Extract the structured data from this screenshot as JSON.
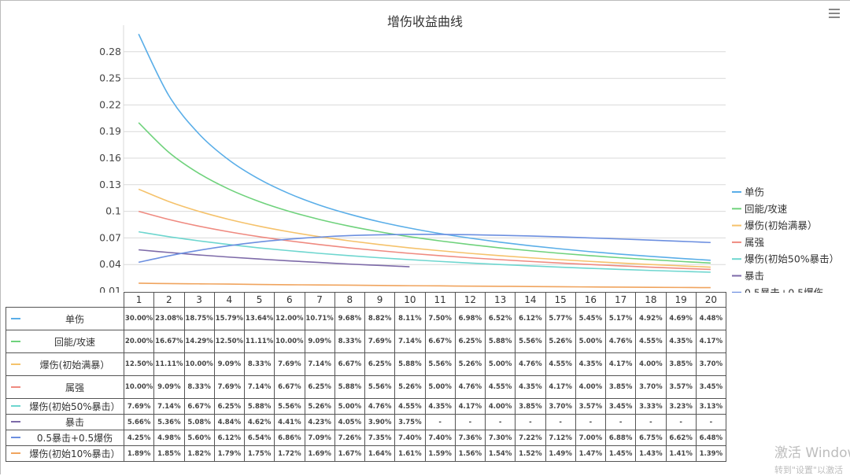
{
  "window": {
    "menu_icon": "hamburger-menu-icon"
  },
  "watermark": {
    "line1": "激活 Windows",
    "line2": "转到\"设置\"以激活"
  },
  "chart_data": {
    "type": "line",
    "title": "增伤收益曲线",
    "xlabel": "",
    "ylabel": "",
    "ylim": [
      0.01,
      0.31
    ],
    "yticks": [
      "0.01",
      "0.04",
      "0.07",
      "0.1",
      "0.13",
      "0.16",
      "0.19",
      "0.22",
      "0.25",
      "0.28"
    ],
    "grid": true,
    "legend_position": "right",
    "x": [
      1,
      2,
      3,
      4,
      5,
      6,
      7,
      8,
      9,
      10,
      11,
      12,
      13,
      14,
      15,
      16,
      17,
      18,
      19,
      20
    ],
    "series": [
      {
        "name": "单伤",
        "color": "#5aaee8",
        "values": [
          0.3,
          0.2308,
          0.1875,
          0.1579,
          0.1364,
          0.12,
          0.1071,
          0.0968,
          0.0882,
          0.0811,
          0.075,
          0.0698,
          0.0652,
          0.0612,
          0.0577,
          0.0545,
          0.0517,
          0.0492,
          0.0469,
          0.0448
        ],
        "labels": [
          "30.00%",
          "23.08%",
          "18.75%",
          "15.79%",
          "13.64%",
          "12.00%",
          "10.71%",
          "9.68%",
          "8.82%",
          "8.11%",
          "7.50%",
          "6.98%",
          "6.52%",
          "6.12%",
          "5.77%",
          "5.45%",
          "5.17%",
          "4.92%",
          "4.69%",
          "4.48%"
        ]
      },
      {
        "name": "回能/攻速",
        "color": "#6fd27c",
        "values": [
          0.2,
          0.1667,
          0.1429,
          0.125,
          0.1111,
          0.1,
          0.0909,
          0.0833,
          0.0769,
          0.0714,
          0.0667,
          0.0625,
          0.0588,
          0.0556,
          0.0526,
          0.05,
          0.0476,
          0.0455,
          0.0435,
          0.0417
        ],
        "labels": [
          "20.00%",
          "16.67%",
          "14.29%",
          "12.50%",
          "11.11%",
          "10.00%",
          "9.09%",
          "8.33%",
          "7.69%",
          "7.14%",
          "6.67%",
          "6.25%",
          "5.88%",
          "5.56%",
          "5.26%",
          "5.00%",
          "4.76%",
          "4.55%",
          "4.35%",
          "4.17%"
        ]
      },
      {
        "name": "爆伤(初始满暴）",
        "color": "#f5c26b",
        "values": [
          0.125,
          0.1111,
          0.1,
          0.0909,
          0.0833,
          0.0769,
          0.0714,
          0.0667,
          0.0625,
          0.0588,
          0.0556,
          0.0526,
          0.05,
          0.0476,
          0.0455,
          0.0435,
          0.0417,
          0.04,
          0.0385,
          0.037
        ],
        "labels": [
          "12.50%",
          "11.11%",
          "10.00%",
          "9.09%",
          "8.33%",
          "7.69%",
          "7.14%",
          "6.67%",
          "6.25%",
          "5.88%",
          "5.56%",
          "5.26%",
          "5.00%",
          "4.76%",
          "4.55%",
          "4.35%",
          "4.17%",
          "4.00%",
          "3.85%",
          "3.70%"
        ]
      },
      {
        "name": "属强",
        "color": "#ef8a80",
        "values": [
          0.1,
          0.0909,
          0.0833,
          0.0769,
          0.0714,
          0.0667,
          0.0625,
          0.0588,
          0.0556,
          0.0526,
          0.05,
          0.0476,
          0.0455,
          0.0435,
          0.0417,
          0.04,
          0.0385,
          0.037,
          0.0357,
          0.0345
        ],
        "labels": [
          "10.00%",
          "9.09%",
          "8.33%",
          "7.69%",
          "7.14%",
          "6.67%",
          "6.25%",
          "5.88%",
          "5.56%",
          "5.26%",
          "5.00%",
          "4.76%",
          "4.55%",
          "4.35%",
          "4.17%",
          "4.00%",
          "3.85%",
          "3.70%",
          "3.57%",
          "3.45%"
        ]
      },
      {
        "name": "爆伤(初始50%暴击）",
        "color": "#6ed6cf",
        "values": [
          0.0769,
          0.0714,
          0.0667,
          0.0625,
          0.0588,
          0.0556,
          0.0526,
          0.05,
          0.0476,
          0.0455,
          0.0435,
          0.0417,
          0.04,
          0.0385,
          0.037,
          0.0357,
          0.0345,
          0.0333,
          0.0323,
          0.0313
        ],
        "labels": [
          "7.69%",
          "7.14%",
          "6.67%",
          "6.25%",
          "5.88%",
          "5.56%",
          "5.26%",
          "5.00%",
          "4.76%",
          "4.55%",
          "4.35%",
          "4.17%",
          "4.00%",
          "3.85%",
          "3.70%",
          "3.57%",
          "3.45%",
          "3.33%",
          "3.23%",
          "3.13%"
        ]
      },
      {
        "name": "暴击",
        "color": "#7d6aa8",
        "values": [
          0.0566,
          0.0536,
          0.0508,
          0.0484,
          0.0462,
          0.0441,
          0.0423,
          0.0405,
          0.039,
          0.0375,
          null,
          null,
          null,
          null,
          null,
          null,
          null,
          null,
          null,
          null
        ],
        "labels": [
          "5.66%",
          "5.36%",
          "5.08%",
          "4.84%",
          "4.62%",
          "4.41%",
          "4.23%",
          "4.05%",
          "3.90%",
          "3.75%",
          "-",
          "-",
          "-",
          "-",
          "-",
          "-",
          "-",
          "-",
          "-",
          "-"
        ]
      },
      {
        "name": "0.5暴击+0.5爆伤",
        "color": "#6c8fe0",
        "values": [
          0.0425,
          0.0498,
          0.056,
          0.0612,
          0.0654,
          0.0686,
          0.0709,
          0.0726,
          0.0735,
          0.074,
          0.074,
          0.0736,
          0.073,
          0.0722,
          0.0712,
          0.07,
          0.0688,
          0.0675,
          0.0662,
          0.0648
        ],
        "labels": [
          "4.25%",
          "4.98%",
          "5.60%",
          "6.12%",
          "6.54%",
          "6.86%",
          "7.09%",
          "7.26%",
          "7.35%",
          "7.40%",
          "7.40%",
          "7.36%",
          "7.30%",
          "7.22%",
          "7.12%",
          "7.00%",
          "6.88%",
          "6.75%",
          "6.62%",
          "6.48%"
        ]
      },
      {
        "name": "爆伤(初始10%暴击）",
        "color": "#f0a45e",
        "values": [
          0.0189,
          0.0185,
          0.0182,
          0.0179,
          0.0175,
          0.0172,
          0.0169,
          0.0167,
          0.0164,
          0.0161,
          0.0159,
          0.0156,
          0.0154,
          0.0152,
          0.0149,
          0.0147,
          0.0145,
          0.0143,
          0.0141,
          0.0139
        ],
        "labels": [
          "1.89%",
          "1.85%",
          "1.82%",
          "1.79%",
          "1.75%",
          "1.72%",
          "1.69%",
          "1.67%",
          "1.64%",
          "1.61%",
          "1.59%",
          "1.56%",
          "1.54%",
          "1.52%",
          "1.49%",
          "1.47%",
          "1.45%",
          "1.43%",
          "1.41%",
          "1.39%"
        ]
      }
    ]
  }
}
